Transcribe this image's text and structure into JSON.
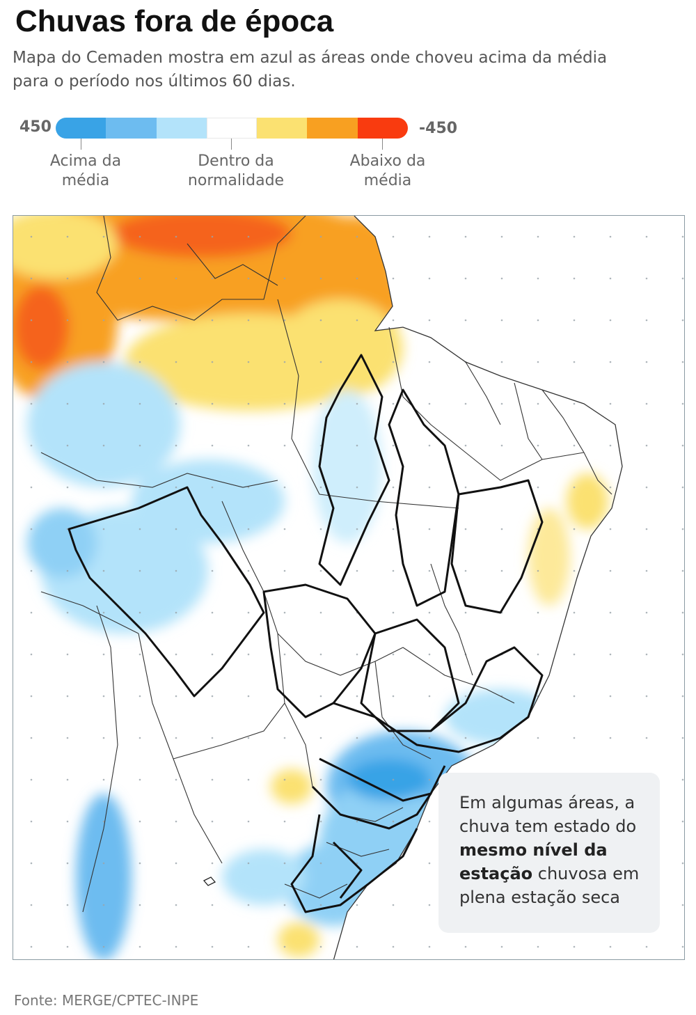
{
  "title": "Chuvas fora de época",
  "subtitle": "Mapa do Cemaden mostra em azul as áreas onde choveu acima da média para o período nos últimos 60 dias.",
  "legend": {
    "min_label": "450",
    "max_label": "-450",
    "colors": [
      "#39a3e6",
      "#6dbcf0",
      "#b3e3fa",
      "#ffffff",
      "#fbe171",
      "#f8a021",
      "#f93b0f"
    ],
    "labels": [
      {
        "line1": "Acima da",
        "line2": "média"
      },
      {
        "line1": "Dentro da",
        "line2": "normalidade"
      },
      {
        "line1": "Abaixo da",
        "line2": "média"
      }
    ]
  },
  "callout": {
    "part1": "Em algumas áreas, a chuva tem estado do ",
    "bold": "mesmo nível da estação",
    "part2": " chuvosa em plena estação seca"
  },
  "source": "Fonte: MERGE/CPTEC-INPE"
}
